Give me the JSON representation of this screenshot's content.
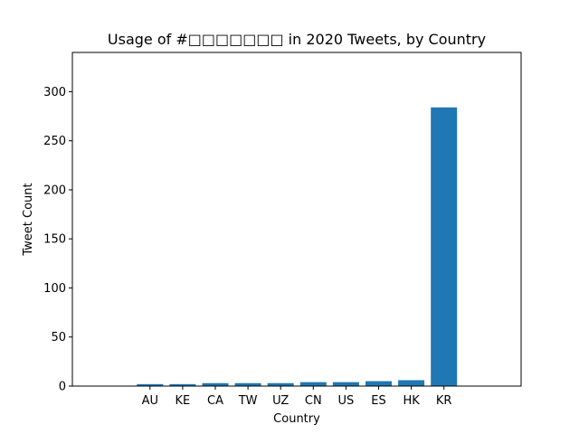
{
  "chart_data": {
    "type": "bar",
    "title": "Usage of #□□□□□□□ in 2020 Tweets, by Country",
    "xlabel": "Country",
    "ylabel": "Tweet Count",
    "categories": [
      "AU",
      "KE",
      "CA",
      "TW",
      "UZ",
      "CN",
      "US",
      "ES",
      "HK",
      "KR"
    ],
    "values": [
      2,
      2,
      3,
      3,
      3,
      4,
      4,
      5,
      6,
      284
    ],
    "ylim": [
      0,
      340
    ],
    "yticks": [
      0,
      50,
      100,
      150,
      200,
      250,
      300
    ],
    "grid": false,
    "legend": "none",
    "colors": {
      "bar": "#1f77b4",
      "axis": "#000000",
      "background": "#ffffff"
    }
  }
}
